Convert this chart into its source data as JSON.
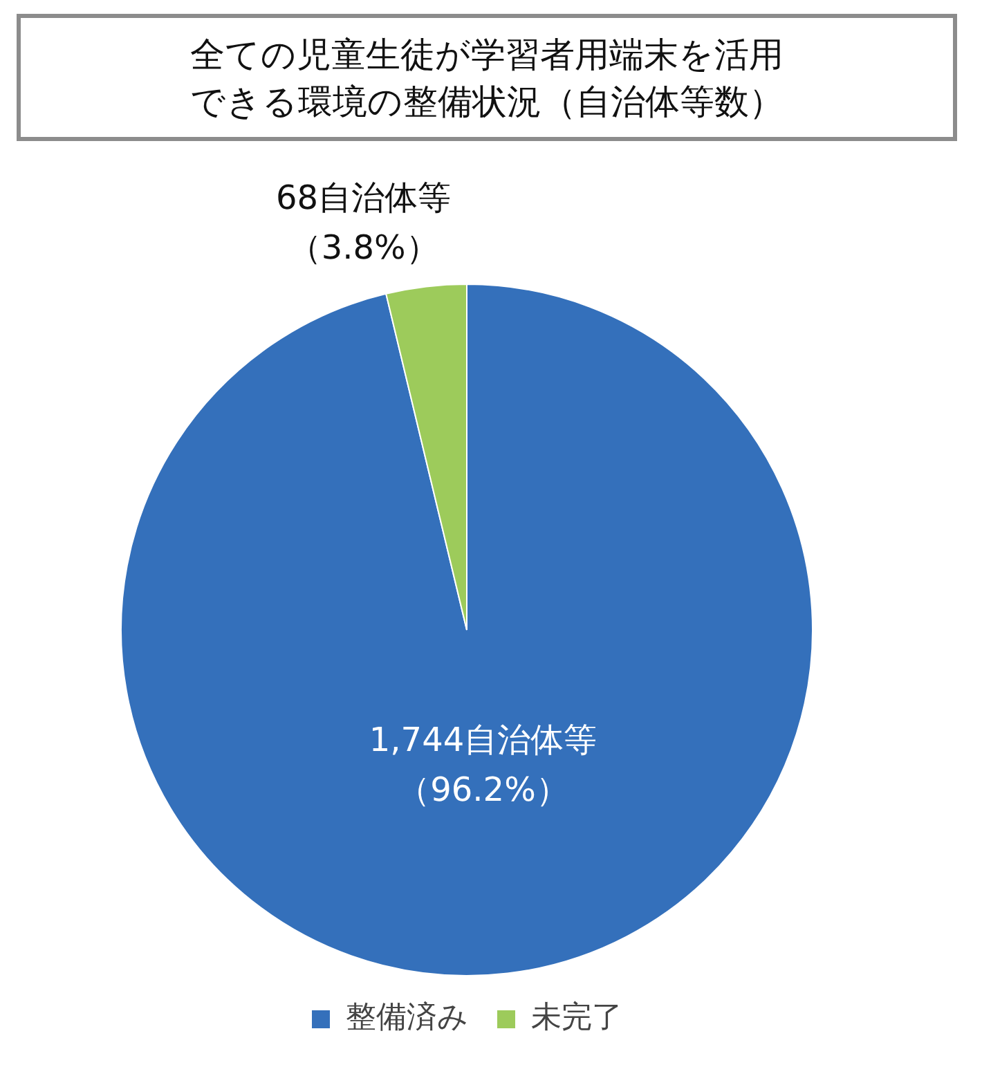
{
  "chart_data": {
    "type": "pie",
    "title": "全ての児童生徒が学習者用端末を活用できる環境の整備状況（自治体等数）",
    "categories": [
      "整備済み",
      "未完了"
    ],
    "values": [
      1744,
      68
    ],
    "colors": [
      "#3470bb",
      "#9dcb5b"
    ],
    "value_labels": [
      "1,744自治体等（96.2%）",
      "68自治体等（3.8%）"
    ],
    "legend": "bottom"
  }
}
